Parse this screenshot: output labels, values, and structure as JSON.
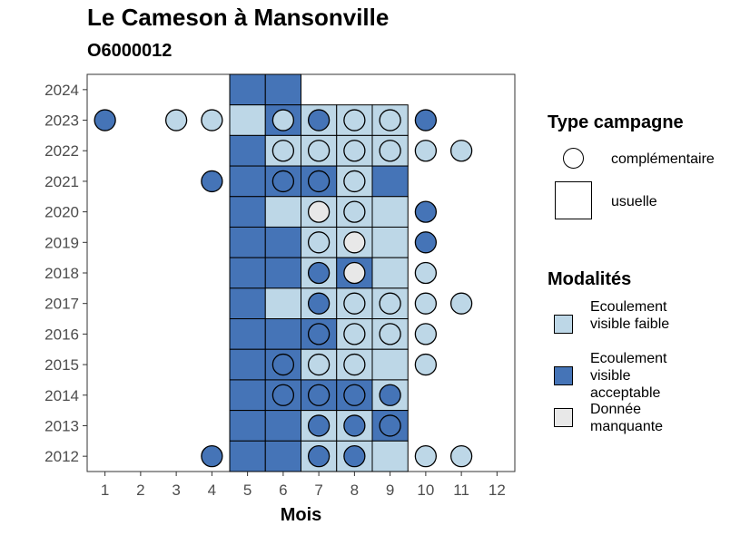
{
  "title": "Le Cameson à Mansonville",
  "subtitle": "O6000012",
  "chart_data": {
    "type": "tile",
    "xlabel": "Mois",
    "ylabel": "",
    "x_ticks": [
      1,
      2,
      3,
      4,
      5,
      6,
      7,
      8,
      9,
      10,
      11,
      12
    ],
    "y_ticks": [
      2012,
      2013,
      2014,
      2015,
      2016,
      2017,
      2018,
      2019,
      2020,
      2021,
      2022,
      2023,
      2024
    ],
    "xlim": [
      0.5,
      12.5
    ],
    "ylim": [
      2011.5,
      2024.5
    ],
    "colors": {
      "faible": "#bdd7e7",
      "acceptable": "#4574b7",
      "manquante": "#e8e8e8"
    },
    "legend_shape": {
      "title": "Type campagne",
      "items": [
        "complémentaire",
        "usuelle"
      ]
    },
    "legend_fill": {
      "title": "Modalités",
      "items": [
        "Ecoulement visible faible",
        "Ecoulement visible acceptable",
        "Donnée manquante"
      ]
    },
    "usuelle": [
      {
        "y": 2024,
        "m": 5,
        "v": "acceptable"
      },
      {
        "y": 2024,
        "m": 6,
        "v": "acceptable"
      },
      {
        "y": 2023,
        "m": 5,
        "v": "faible"
      },
      {
        "y": 2023,
        "m": 6,
        "v": "acceptable"
      },
      {
        "y": 2023,
        "m": 7,
        "v": "faible"
      },
      {
        "y": 2023,
        "m": 8,
        "v": "faible"
      },
      {
        "y": 2023,
        "m": 9,
        "v": "faible"
      },
      {
        "y": 2022,
        "m": 5,
        "v": "acceptable"
      },
      {
        "y": 2022,
        "m": 6,
        "v": "faible"
      },
      {
        "y": 2022,
        "m": 7,
        "v": "faible"
      },
      {
        "y": 2022,
        "m": 8,
        "v": "faible"
      },
      {
        "y": 2022,
        "m": 9,
        "v": "faible"
      },
      {
        "y": 2021,
        "m": 5,
        "v": "acceptable"
      },
      {
        "y": 2021,
        "m": 6,
        "v": "acceptable"
      },
      {
        "y": 2021,
        "m": 7,
        "v": "acceptable"
      },
      {
        "y": 2021,
        "m": 8,
        "v": "faible"
      },
      {
        "y": 2021,
        "m": 9,
        "v": "acceptable"
      },
      {
        "y": 2020,
        "m": 5,
        "v": "acceptable"
      },
      {
        "y": 2020,
        "m": 6,
        "v": "faible"
      },
      {
        "y": 2020,
        "m": 7,
        "v": "faible"
      },
      {
        "y": 2020,
        "m": 8,
        "v": "faible"
      },
      {
        "y": 2020,
        "m": 9,
        "v": "faible"
      },
      {
        "y": 2019,
        "m": 5,
        "v": "acceptable"
      },
      {
        "y": 2019,
        "m": 6,
        "v": "acceptable"
      },
      {
        "y": 2019,
        "m": 7,
        "v": "faible"
      },
      {
        "y": 2019,
        "m": 8,
        "v": "faible"
      },
      {
        "y": 2019,
        "m": 9,
        "v": "faible"
      },
      {
        "y": 2018,
        "m": 5,
        "v": "acceptable"
      },
      {
        "y": 2018,
        "m": 6,
        "v": "acceptable"
      },
      {
        "y": 2018,
        "m": 7,
        "v": "faible"
      },
      {
        "y": 2018,
        "m": 8,
        "v": "acceptable"
      },
      {
        "y": 2018,
        "m": 9,
        "v": "faible"
      },
      {
        "y": 2017,
        "m": 5,
        "v": "acceptable"
      },
      {
        "y": 2017,
        "m": 6,
        "v": "faible"
      },
      {
        "y": 2017,
        "m": 7,
        "v": "faible"
      },
      {
        "y": 2017,
        "m": 8,
        "v": "faible"
      },
      {
        "y": 2017,
        "m": 9,
        "v": "faible"
      },
      {
        "y": 2016,
        "m": 5,
        "v": "acceptable"
      },
      {
        "y": 2016,
        "m": 6,
        "v": "acceptable"
      },
      {
        "y": 2016,
        "m": 7,
        "v": "acceptable"
      },
      {
        "y": 2016,
        "m": 8,
        "v": "faible"
      },
      {
        "y": 2016,
        "m": 9,
        "v": "faible"
      },
      {
        "y": 2015,
        "m": 5,
        "v": "acceptable"
      },
      {
        "y": 2015,
        "m": 6,
        "v": "acceptable"
      },
      {
        "y": 2015,
        "m": 7,
        "v": "faible"
      },
      {
        "y": 2015,
        "m": 8,
        "v": "faible"
      },
      {
        "y": 2015,
        "m": 9,
        "v": "faible"
      },
      {
        "y": 2014,
        "m": 5,
        "v": "acceptable"
      },
      {
        "y": 2014,
        "m": 6,
        "v": "acceptable"
      },
      {
        "y": 2014,
        "m": 7,
        "v": "acceptable"
      },
      {
        "y": 2014,
        "m": 8,
        "v": "acceptable"
      },
      {
        "y": 2014,
        "m": 9,
        "v": "faible"
      },
      {
        "y": 2013,
        "m": 5,
        "v": "acceptable"
      },
      {
        "y": 2013,
        "m": 6,
        "v": "acceptable"
      },
      {
        "y": 2013,
        "m": 7,
        "v": "faible"
      },
      {
        "y": 2013,
        "m": 8,
        "v": "faible"
      },
      {
        "y": 2013,
        "m": 9,
        "v": "acceptable"
      },
      {
        "y": 2012,
        "m": 5,
        "v": "acceptable"
      },
      {
        "y": 2012,
        "m": 6,
        "v": "acceptable"
      },
      {
        "y": 2012,
        "m": 7,
        "v": "faible"
      },
      {
        "y": 2012,
        "m": 8,
        "v": "faible"
      },
      {
        "y": 2012,
        "m": 9,
        "v": "faible"
      }
    ],
    "complementaire": [
      {
        "y": 2023,
        "m": 1,
        "v": "acceptable"
      },
      {
        "y": 2023,
        "m": 3,
        "v": "faible"
      },
      {
        "y": 2023,
        "m": 4,
        "v": "faible"
      },
      {
        "y": 2023,
        "m": 6,
        "v": "faible"
      },
      {
        "y": 2023,
        "m": 7,
        "v": "acceptable"
      },
      {
        "y": 2023,
        "m": 8,
        "v": "faible"
      },
      {
        "y": 2023,
        "m": 9,
        "v": "faible"
      },
      {
        "y": 2023,
        "m": 10,
        "v": "acceptable"
      },
      {
        "y": 2022,
        "m": 6,
        "v": "faible"
      },
      {
        "y": 2022,
        "m": 7,
        "v": "faible"
      },
      {
        "y": 2022,
        "m": 8,
        "v": "faible"
      },
      {
        "y": 2022,
        "m": 9,
        "v": "faible"
      },
      {
        "y": 2022,
        "m": 10,
        "v": "faible"
      },
      {
        "y": 2022,
        "m": 11,
        "v": "faible"
      },
      {
        "y": 2021,
        "m": 4,
        "v": "acceptable"
      },
      {
        "y": 2021,
        "m": 6,
        "v": "acceptable"
      },
      {
        "y": 2021,
        "m": 7,
        "v": "acceptable"
      },
      {
        "y": 2021,
        "m": 8,
        "v": "faible"
      },
      {
        "y": 2020,
        "m": 7,
        "v": "manquante"
      },
      {
        "y": 2020,
        "m": 8,
        "v": "faible"
      },
      {
        "y": 2020,
        "m": 10,
        "v": "acceptable"
      },
      {
        "y": 2019,
        "m": 7,
        "v": "faible"
      },
      {
        "y": 2019,
        "m": 8,
        "v": "manquante"
      },
      {
        "y": 2019,
        "m": 10,
        "v": "acceptable"
      },
      {
        "y": 2018,
        "m": 7,
        "v": "acceptable"
      },
      {
        "y": 2018,
        "m": 8,
        "v": "manquante"
      },
      {
        "y": 2018,
        "m": 10,
        "v": "faible"
      },
      {
        "y": 2017,
        "m": 7,
        "v": "acceptable"
      },
      {
        "y": 2017,
        "m": 8,
        "v": "faible"
      },
      {
        "y": 2017,
        "m": 9,
        "v": "faible"
      },
      {
        "y": 2017,
        "m": 10,
        "v": "faible"
      },
      {
        "y": 2017,
        "m": 11,
        "v": "faible"
      },
      {
        "y": 2016,
        "m": 7,
        "v": "acceptable"
      },
      {
        "y": 2016,
        "m": 8,
        "v": "faible"
      },
      {
        "y": 2016,
        "m": 9,
        "v": "faible"
      },
      {
        "y": 2016,
        "m": 10,
        "v": "faible"
      },
      {
        "y": 2015,
        "m": 6,
        "v": "acceptable"
      },
      {
        "y": 2015,
        "m": 7,
        "v": "faible"
      },
      {
        "y": 2015,
        "m": 8,
        "v": "faible"
      },
      {
        "y": 2015,
        "m": 10,
        "v": "faible"
      },
      {
        "y": 2014,
        "m": 6,
        "v": "acceptable"
      },
      {
        "y": 2014,
        "m": 7,
        "v": "acceptable"
      },
      {
        "y": 2014,
        "m": 8,
        "v": "acceptable"
      },
      {
        "y": 2014,
        "m": 9,
        "v": "acceptable"
      },
      {
        "y": 2013,
        "m": 7,
        "v": "acceptable"
      },
      {
        "y": 2013,
        "m": 8,
        "v": "acceptable"
      },
      {
        "y": 2013,
        "m": 9,
        "v": "acceptable"
      },
      {
        "y": 2012,
        "m": 4,
        "v": "acceptable"
      },
      {
        "y": 2012,
        "m": 7,
        "v": "acceptable"
      },
      {
        "y": 2012,
        "m": 8,
        "v": "acceptable"
      },
      {
        "y": 2012,
        "m": 10,
        "v": "faible"
      },
      {
        "y": 2012,
        "m": 11,
        "v": "faible"
      }
    ]
  }
}
